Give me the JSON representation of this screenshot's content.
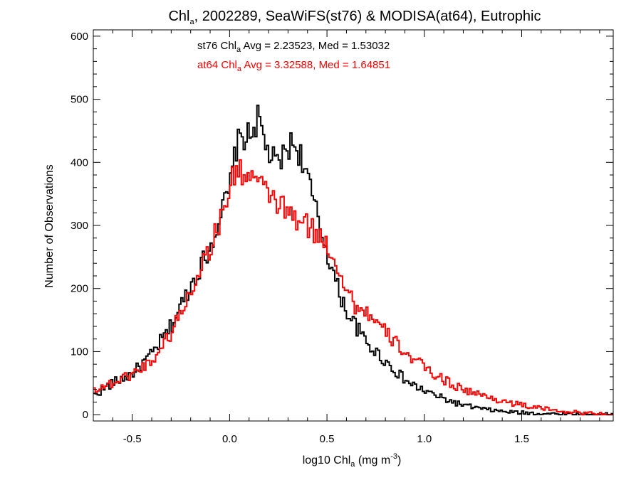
{
  "chart_data": {
    "type": "line",
    "title": {
      "prefix": "Chl",
      "sub": "a",
      "rest": ", 2002289, SeaWiFS(st76) & MODISA(at64), Eutrophic"
    },
    "xlabel": {
      "prefix": "log10 Chl",
      "sub": "a",
      "mid": " (mg m",
      "sup": "-3",
      "end": ")"
    },
    "ylabel": "Number of Observations",
    "xlim": [
      -0.7,
      1.97
    ],
    "ylim": [
      -10,
      610
    ],
    "xticks": [
      -0.5,
      0.0,
      0.5,
      1.0,
      1.5
    ],
    "xtick_labels": [
      "-0.5",
      "0.0",
      "0.5",
      "1.0",
      "1.5"
    ],
    "yticks": [
      0,
      100,
      200,
      300,
      400,
      500,
      600
    ],
    "ytick_labels": [
      "0",
      "100",
      "200",
      "300",
      "400",
      "500",
      "600"
    ],
    "annotations": [
      {
        "prefix": "st76 Chl",
        "sub": "a",
        "rest": " Avg = 2.23523, Med = 1.53032",
        "color": "#000000"
      },
      {
        "prefix": "at64 Chl",
        "sub": "a",
        "rest": " Avg = 3.32588, Med = 1.64851",
        "color": "#ff0000"
      }
    ],
    "bin_width": 0.01,
    "series": [
      {
        "color": "#000000",
        "x": [
          -0.7,
          -0.6,
          -0.5,
          -0.4,
          -0.3,
          -0.2,
          -0.15,
          -0.1,
          -0.05,
          0.0,
          0.03,
          0.06,
          0.1,
          0.13,
          0.15,
          0.18,
          0.21,
          0.24,
          0.27,
          0.3,
          0.33,
          0.36,
          0.39,
          0.42,
          0.45,
          0.5,
          0.55,
          0.6,
          0.65,
          0.7,
          0.75,
          0.8,
          0.85,
          0.9,
          0.95,
          1.0,
          1.1,
          1.2,
          1.3,
          1.4,
          1.5,
          1.6,
          1.7,
          1.8,
          1.97
        ],
        "y": [
          30,
          50,
          65,
          95,
          140,
          205,
          235,
          265,
          315,
          355,
          420,
          440,
          440,
          460,
          470,
          430,
          410,
          395,
          405,
          425,
          430,
          415,
          390,
          350,
          315,
          260,
          205,
          165,
          140,
          115,
          100,
          85,
          70,
          55,
          45,
          38,
          25,
          15,
          9,
          5,
          3,
          2,
          1,
          0,
          0
        ]
      },
      {
        "color": "#ff0000",
        "x": [
          -0.7,
          -0.6,
          -0.5,
          -0.4,
          -0.3,
          -0.2,
          -0.15,
          -0.1,
          -0.05,
          0.0,
          0.03,
          0.06,
          0.1,
          0.13,
          0.16,
          0.2,
          0.25,
          0.3,
          0.35,
          0.4,
          0.45,
          0.5,
          0.55,
          0.6,
          0.65,
          0.7,
          0.75,
          0.8,
          0.85,
          0.9,
          0.95,
          1.0,
          1.05,
          1.1,
          1.15,
          1.2,
          1.3,
          1.4,
          1.5,
          1.6,
          1.7,
          1.8,
          1.9,
          1.97
        ],
        "y": [
          40,
          50,
          65,
          85,
          130,
          195,
          235,
          265,
          305,
          360,
          385,
          385,
          380,
          375,
          360,
          350,
          335,
          320,
          305,
          300,
          285,
          270,
          240,
          200,
          170,
          165,
          145,
          130,
          115,
          100,
          85,
          75,
          65,
          55,
          48,
          40,
          30,
          22,
          15,
          10,
          6,
          3,
          1,
          0
        ]
      }
    ]
  }
}
